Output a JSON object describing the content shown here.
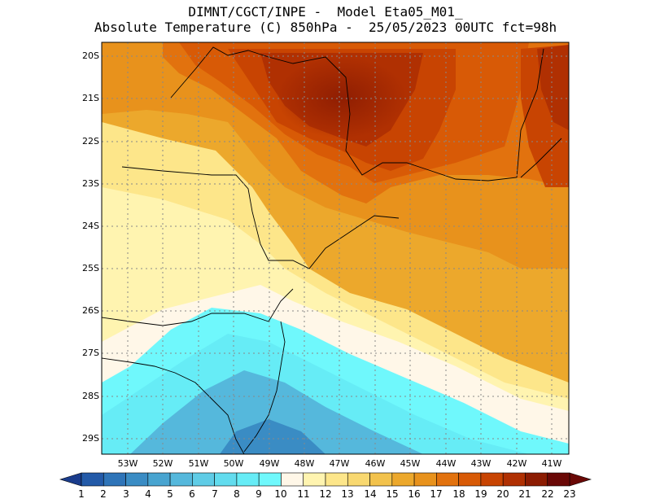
{
  "title": {
    "line1": "DIMNT/CGCT/INPE -  Model Eta05_M01_",
    "line2": "Absolute Temperature (C) 850hPa -  25/05/2023 00UTC fct=98h"
  },
  "map": {
    "lat_labels": [
      "20S",
      "21S",
      "22S",
      "23S",
      "24S",
      "25S",
      "26S",
      "27S",
      "28S",
      "29S"
    ],
    "lon_labels": [
      "53W",
      "52W",
      "51W",
      "50W",
      "49W",
      "48W",
      "47W",
      "46W",
      "45W",
      "44W",
      "43W",
      "42W",
      "41W"
    ],
    "lat_range": [
      -29.4,
      -19.7
    ],
    "lon_range": [
      -53.8,
      -40.6
    ],
    "gridlines": "dotted"
  },
  "colorbar": {
    "labels": [
      "1",
      "2",
      "3",
      "4",
      "5",
      "6",
      "7",
      "8",
      "9",
      "10",
      "11",
      "12",
      "13",
      "14",
      "15",
      "16",
      "17",
      "18",
      "19",
      "20",
      "21",
      "22",
      "23"
    ],
    "colors": [
      "#1a3c8c",
      "#235aa8",
      "#2e74b8",
      "#3a8cc4",
      "#48a4d0",
      "#55b8dc",
      "#5fcce6",
      "#62dcee",
      "#66ecf6",
      "#6ff8fc",
      "#fff7e8",
      "#fff4b0",
      "#fde68a",
      "#f8d870",
      "#f2c24c",
      "#eca82c",
      "#e8921c",
      "#e2720e",
      "#d85a06",
      "#c84402",
      "#b03002",
      "#8c1c02",
      "#6a0806"
    ],
    "under_color": "#1a3c8c",
    "over_color": "#6a0806"
  }
}
